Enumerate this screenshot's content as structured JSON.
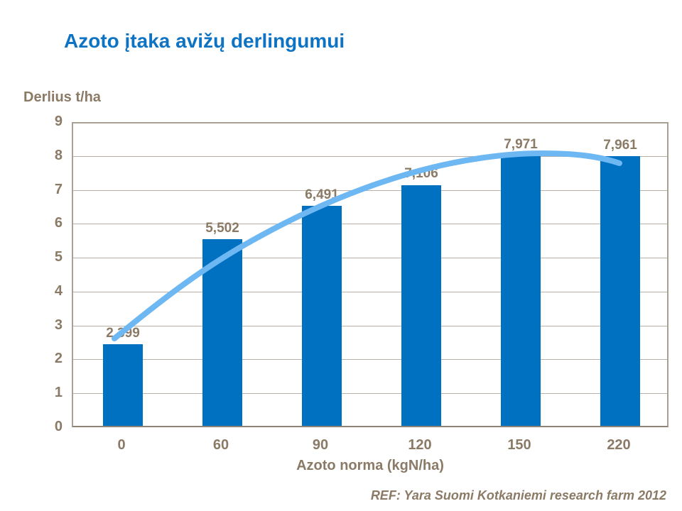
{
  "slide": {
    "title": "Azoto įtaka avižų derlingumui",
    "footer": "REF: Yara Suomi Kotkaniemi research farm 2012"
  },
  "chart_data": {
    "type": "bar",
    "title": "Azoto įtaka avižų derlingumui",
    "xlabel": "Azoto norma (kgN/ha)",
    "ylabel": "Derlius t/ha",
    "categories": [
      "0",
      "60",
      "90",
      "120",
      "150",
      "220"
    ],
    "values": [
      2.399,
      5.502,
      6.491,
      7.106,
      7.971,
      7.961
    ],
    "bar_labels": [
      "2,399",
      "5,502",
      "6,491",
      "7,106",
      "7,971",
      "7,961"
    ],
    "ylim": [
      0,
      9
    ],
    "ytick_step": 1,
    "yticks": [
      "0",
      "1",
      "2",
      "3",
      "4",
      "5",
      "6",
      "7",
      "8",
      "9"
    ],
    "grid": true,
    "legend_position": "none",
    "overlay_series": {
      "name": "fitted-response-curve",
      "type": "line",
      "x": [
        0,
        60,
        90,
        120,
        150,
        220
      ],
      "values": [
        2.6,
        5.0,
        6.5,
        7.5,
        8.0,
        7.9
      ]
    },
    "colors": {
      "bar": "#0070c0",
      "curve": "#6db7f2",
      "axis_text": "#8b7a66",
      "grid": "#b9b1a7",
      "title": "#0d73c2"
    },
    "source": "REF: Yara Suomi Kotkaniemi research farm 2012"
  }
}
